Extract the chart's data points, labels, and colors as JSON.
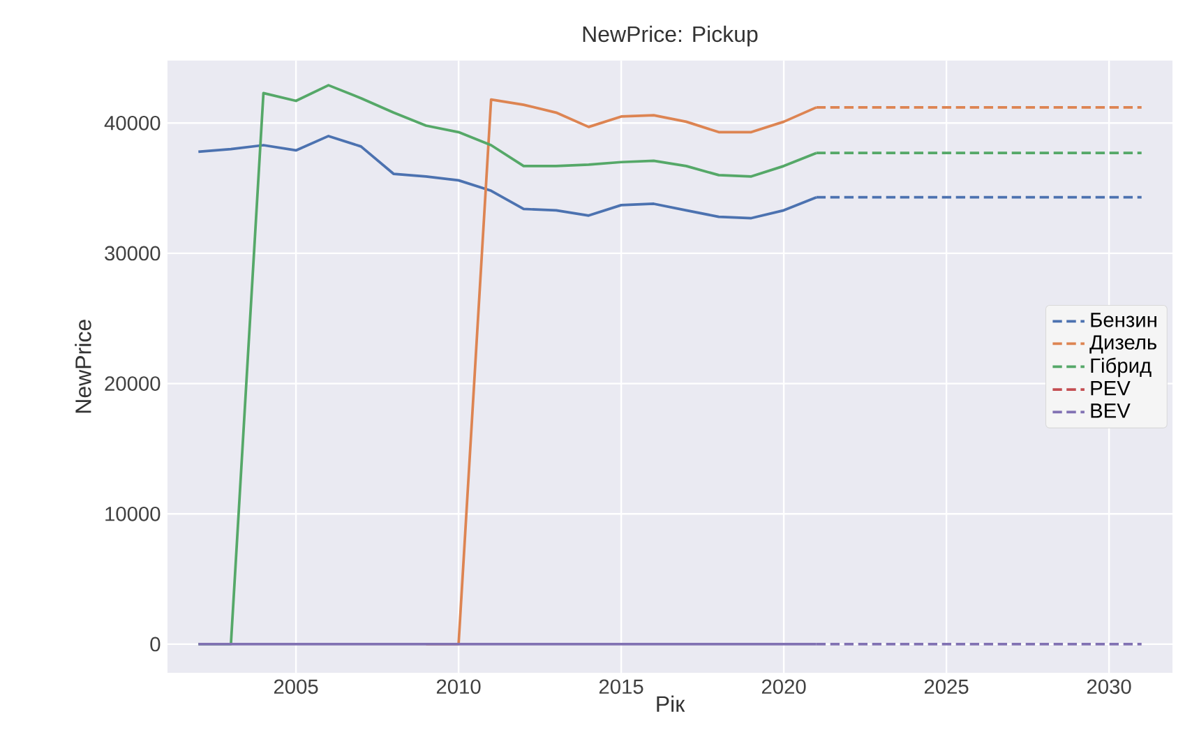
{
  "chart_data": {
    "type": "line",
    "title": "NewPrice: Pickup",
    "xlabel": "Рік",
    "ylabel": "NewPrice",
    "xlim": [
      2001.05,
      2031.95
    ],
    "ylim": [
      -2200,
      44800
    ],
    "xticks": [
      2005,
      2010,
      2015,
      2020,
      2025,
      2030
    ],
    "yticks": [
      0,
      10000,
      20000,
      30000,
      40000
    ],
    "grid": true,
    "legend": "right",
    "series": [
      {
        "color": "#4c72b0",
        "line_style": "solid",
        "x": [
          2002,
          2003,
          2004,
          2005,
          2006,
          2007,
          2008,
          2009,
          2010,
          2011,
          2012,
          2013,
          2014,
          2015,
          2016,
          2017,
          2018,
          2019,
          2020,
          2021
        ],
        "values": [
          37800,
          38000,
          38300,
          37900,
          39000,
          38200,
          36100,
          35900,
          35600,
          34800,
          33400,
          33300,
          32900,
          33700,
          33800,
          33300,
          32800,
          32700,
          33300,
          34300
        ]
      },
      {
        "color": "#dd8452",
        "line_style": "solid",
        "x": [
          2009,
          2010,
          2011,
          2012,
          2013,
          2014,
          2015,
          2016,
          2017,
          2018,
          2019,
          2020,
          2021
        ],
        "values": [
          0,
          0,
          41800,
          41400,
          40800,
          39700,
          40500,
          40600,
          40100,
          39300,
          39300,
          40100,
          41200
        ]
      },
      {
        "color": "#55a868",
        "line_style": "solid",
        "x": [
          2002,
          2003,
          2004,
          2005,
          2006,
          2007,
          2008,
          2009,
          2010,
          2011,
          2012,
          2013,
          2014,
          2015,
          2016,
          2017,
          2018,
          2019,
          2020,
          2021
        ],
        "values": [
          0,
          0,
          42300,
          41700,
          42900,
          41900,
          40800,
          39800,
          39300,
          38300,
          36700,
          36700,
          36800,
          37000,
          37100,
          36700,
          36000,
          35900,
          36700,
          37700
        ]
      },
      {
        "color": "#8172b3",
        "line_style": "solid",
        "x": [
          2002,
          2003,
          2004,
          2005,
          2006,
          2007,
          2008,
          2009,
          2010,
          2011,
          2012,
          2013,
          2014,
          2015,
          2016,
          2017,
          2018,
          2019,
          2020,
          2021
        ],
        "values": [
          0,
          0,
          0,
          0,
          0,
          0,
          0,
          0,
          0,
          0,
          0,
          0,
          0,
          0,
          0,
          0,
          0,
          0,
          0,
          0
        ]
      },
      {
        "name": "Бензин",
        "color": "#4c72b0",
        "line_style": "dashed",
        "x": [
          2021,
          2031
        ],
        "values": [
          34300,
          34300
        ]
      },
      {
        "name": "Дизель",
        "color": "#dd8452",
        "line_style": "dashed",
        "x": [
          2021,
          2031
        ],
        "values": [
          41200,
          41200
        ]
      },
      {
        "name": "Гібрид",
        "color": "#55a868",
        "line_style": "dashed",
        "x": [
          2021,
          2031
        ],
        "values": [
          37700,
          37700
        ]
      },
      {
        "name": "PEV",
        "color": "#c44e52",
        "line_style": "dashed"
      },
      {
        "name": "BEV",
        "color": "#8172b3",
        "line_style": "dashed",
        "x": [
          2021,
          2031
        ],
        "values": [
          0,
          0
        ]
      }
    ]
  }
}
